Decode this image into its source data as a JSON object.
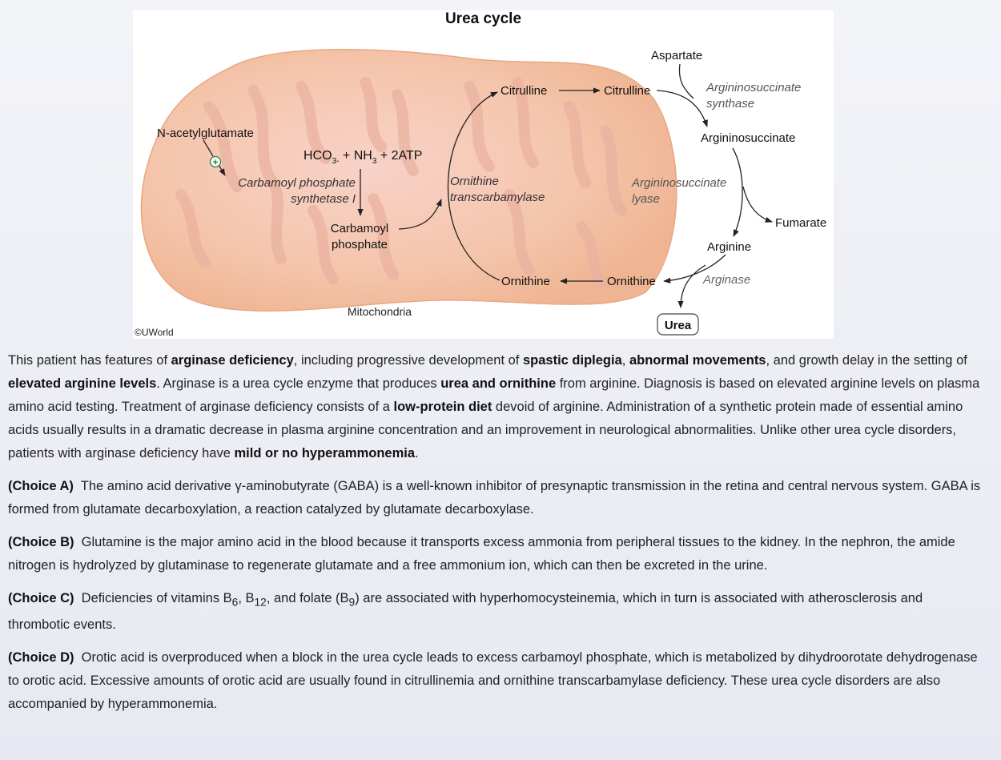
{
  "figure": {
    "title": "Urea cycle",
    "copyright": "©UWorld",
    "mitochondria_label": "Mitochondria",
    "labels": {
      "n_acetylglutamate": "N-acetylglutamate",
      "plus": "+",
      "hco3_a": "HCO",
      "hco3_sub": "3-",
      "hco3_b": " + NH",
      "nh3_sub": "3",
      "hco3_c": " + 2ATP",
      "cps_1": "Carbamoyl phosphate",
      "cps_2": "synthetase I",
      "cp_1": "Carbamoyl",
      "cp_2": "phosphate",
      "otc_1": "Ornithine",
      "otc_2": "transcarbamylase",
      "citrulline_in": "Citrulline",
      "citrulline_out": "Citrulline",
      "ornithine_in": "Ornithine",
      "ornithine_out": "Ornithine",
      "aspartate": "Aspartate",
      "as_synthase_1": "Argininosuccinate",
      "as_synthase_2": "synthase",
      "argininosuccinate": "Argininosuccinate",
      "as_lyase_1": "Argininosuccinate",
      "as_lyase_2": "lyase",
      "fumarate": "Fumarate",
      "arginine": "Arginine",
      "arginase": "Arginase",
      "urea": "Urea"
    }
  },
  "explanation": {
    "p1": [
      {
        "t": "This patient has features of ",
        "b": false
      },
      {
        "t": "arginase deficiency",
        "b": true
      },
      {
        "t": ", including progressive development of ",
        "b": false
      },
      {
        "t": "spastic diplegia",
        "b": true
      },
      {
        "t": ", ",
        "b": false
      },
      {
        "t": "abnormal movements",
        "b": true
      },
      {
        "t": ", and growth delay in the setting of ",
        "b": false
      },
      {
        "t": "elevated arginine levels",
        "b": true
      },
      {
        "t": ".  Arginase is a urea cycle enzyme that produces ",
        "b": false
      },
      {
        "t": "urea and ornithine",
        "b": true
      },
      {
        "t": " from arginine.  Diagnosis is based on elevated arginine levels on plasma amino acid testing.  Treatment of arginase deficiency consists of a ",
        "b": false
      },
      {
        "t": "low-protein diet",
        "b": true
      },
      {
        "t": " devoid of arginine.  Administration of a synthetic protein made of essential amino acids usually results in a dramatic decrease in plasma arginine concentration and an improvement in neurological abnormalities.  Unlike other urea cycle disorders, patients with arginase deficiency have ",
        "b": false
      },
      {
        "t": "mild or no hyperammonemia",
        "b": true
      },
      {
        "t": ".",
        "b": false
      }
    ],
    "choice_a_label": "(Choice A)",
    "choice_a_text": "The amino acid derivative γ-aminobutyrate (GABA) is a well-known inhibitor of presynaptic transmission in the retina and central nervous system.  GABA is formed from glutamate decarboxylation, a reaction catalyzed by glutamate decarboxylase.",
    "choice_b_label": "(Choice B)",
    "choice_b_text": "Glutamine is the major amino acid in the blood because it transports excess ammonia from peripheral tissues to the kidney.  In the nephron, the amide nitrogen is hydrolyzed by glutaminase to regenerate glutamate and a free ammonium ion, which can then be excreted in the urine.",
    "choice_c_label": "(Choice C)",
    "choice_c_text_1": "Deficiencies of vitamins B",
    "choice_c_sub_1": "6",
    "choice_c_text_2": ", B",
    "choice_c_sub_2": "12",
    "choice_c_text_3": ", and folate (B",
    "choice_c_sub_3": "9",
    "choice_c_text_4": ") are associated with hyperhomocysteinemia, which in turn is associated with atherosclerosis and thrombotic events.",
    "choice_d_label": "(Choice D)",
    "choice_d_text": "Orotic acid is overproduced when a block in the urea cycle leads to excess carbamoyl phosphate, which is metabolized by dihydroorotate dehydrogenase to orotic acid.  Excessive amounts of orotic acid are usually found in citrullinemia and ornithine transcarbamylase deficiency.  These urea cycle disorders are also accompanied by hyperammonemia."
  }
}
